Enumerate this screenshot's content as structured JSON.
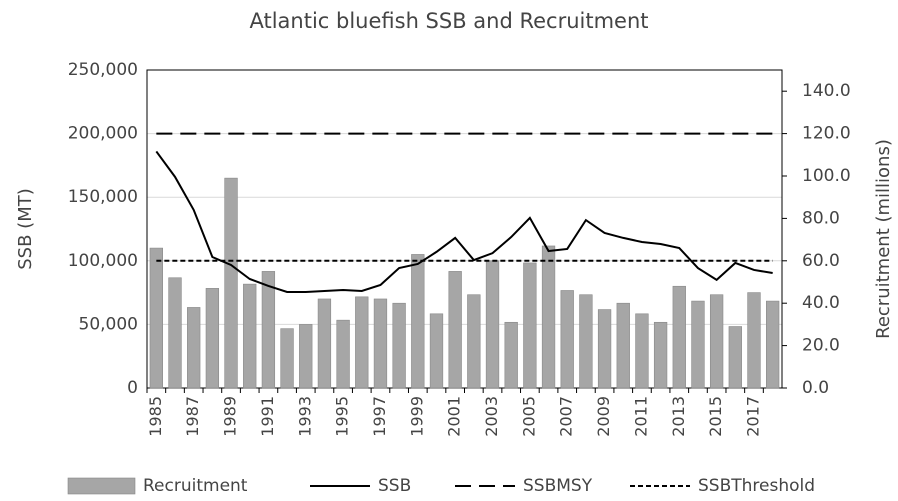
{
  "chart_data": {
    "type": "bar_line",
    "title": "Atlantic bluefish SSB and Recruitment",
    "y_label": "SSB (MT)",
    "y2_label": "Recruitment (millions)",
    "categories": [
      "1985",
      null,
      "1987",
      null,
      "1989",
      null,
      "1991",
      null,
      "1993",
      null,
      "1995",
      null,
      "1997",
      null,
      "1999",
      null,
      "2001",
      null,
      "2003",
      null,
      "2005",
      null,
      "2007",
      null,
      "2009",
      null,
      "2011",
      null,
      "2013",
      null,
      "2015",
      null,
      "2017",
      null
    ],
    "series": [
      {
        "name": "Recruitment",
        "type": "bar",
        "axis": "y2",
        "color": "#a6a6a6",
        "values": [
          66,
          52,
          38,
          47,
          99,
          49,
          55,
          28,
          30,
          42,
          32,
          43,
          42,
          40,
          63,
          35,
          55,
          44,
          60,
          31,
          59,
          67,
          46,
          44,
          37,
          40,
          35,
          31,
          48,
          41,
          44,
          29,
          45,
          41
        ]
      },
      {
        "name": "SSB",
        "type": "line",
        "color": "#000000",
        "line_style": "solid",
        "values": [
          186000,
          166000,
          140000,
          103000,
          96700,
          85700,
          80200,
          75500,
          75500,
          76300,
          77000,
          76300,
          81000,
          94300,
          97500,
          107000,
          118000,
          100600,
          106000,
          118700,
          133700,
          107700,
          109300,
          132000,
          121900,
          118000,
          114800,
          113200,
          110000,
          94300,
          85000,
          98300,
          92800,
          90400
        ]
      },
      {
        "name": "SSBMSY",
        "type": "line",
        "color": "#000000",
        "line_style": "dashed",
        "values": [
          200000,
          200000,
          200000,
          200000,
          200000,
          200000,
          200000,
          200000,
          200000,
          200000,
          200000,
          200000,
          200000,
          200000,
          200000,
          200000,
          200000,
          200000,
          200000,
          200000,
          200000,
          200000,
          200000,
          200000,
          200000,
          200000,
          200000,
          200000,
          200000,
          200000,
          200000,
          200000,
          200000,
          200000
        ]
      },
      {
        "name": "SSBThreshold",
        "type": "line",
        "color": "#000000",
        "line_style": "dotted",
        "values": [
          100000,
          100000,
          100000,
          100000,
          100000,
          100000,
          100000,
          100000,
          100000,
          100000,
          100000,
          100000,
          100000,
          100000,
          100000,
          100000,
          100000,
          100000,
          100000,
          100000,
          100000,
          100000,
          100000,
          100000,
          100000,
          100000,
          100000,
          100000,
          100000,
          100000,
          100000,
          100000,
          100000,
          100000
        ]
      }
    ],
    "ylim": [
      0,
      250000
    ],
    "yticks": [
      0,
      {
        "value": 50000,
        "label": "50,000"
      },
      {
        "value": 100000,
        "label": "100,000"
      },
      {
        "value": 150000,
        "label": "150,000"
      },
      {
        "value": 200000,
        "label": "200,000"
      },
      {
        "value": 250000,
        "label": "250,000"
      }
    ],
    "y2lim": [
      0,
      150
    ],
    "y2ticks": [
      {
        "value": 0,
        "label": "0.0"
      },
      {
        "value": 20,
        "label": "20.0"
      },
      {
        "value": 40,
        "label": "40.0"
      },
      {
        "value": 60,
        "label": "60.0"
      },
      {
        "value": 80,
        "label": "80.0"
      },
      {
        "value": 100,
        "label": "100.0"
      },
      {
        "value": 120,
        "label": "120.0"
      },
      {
        "value": 140,
        "label": "140.0"
      }
    ],
    "grid": true,
    "legend": "bottom"
  }
}
